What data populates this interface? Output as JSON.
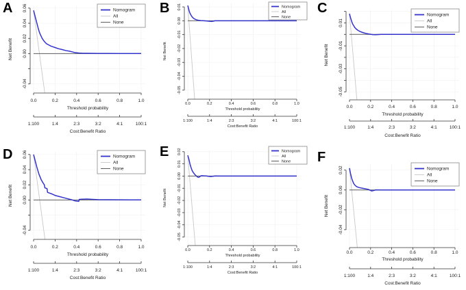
{
  "colors": {
    "nomogram": "#3333cc",
    "all": "#c8c8c8",
    "none": "#5c5c5c",
    "axis": "#333333",
    "grid": "#ededed",
    "legend_border": "#888888"
  },
  "legend": {
    "entries": [
      "Nomogram",
      "All",
      "None"
    ],
    "position": "topright"
  },
  "chart_data": {
    "type": "line",
    "shared": {
      "xlabel": "Threshold probability",
      "x2label": "Cost:Benefit Ratio",
      "ylabel": "Net Benefit",
      "xlim": [
        0,
        1
      ],
      "xticks": [
        0,
        0.2,
        0.4,
        0.6,
        0.8,
        1.0
      ],
      "xtick_labels": [
        "0.0",
        "0.2",
        "0.4",
        "0.6",
        "0.8",
        "1.0"
      ],
      "x2tick_labels": [
        "1:100",
        "1:4",
        "2:3",
        "3:2",
        "4:1",
        "100:1"
      ],
      "legend": [
        "Nomogram",
        "All",
        "None"
      ],
      "grid": true
    },
    "panels": [
      {
        "panel": "A",
        "ylim": [
          -0.052,
          0.0635
        ],
        "yticks": [
          {
            "v": 0.06,
            "label": "0.06"
          },
          {
            "v": 0.04,
            "label": "0.04"
          },
          {
            "v": 0.02,
            "label": "0.02"
          },
          {
            "v": 0,
            "label": "0.00"
          },
          {
            "v": -0.02,
            "label": ""
          },
          {
            "v": -0.04,
            "label": "-0.04"
          }
        ],
        "series": [
          {
            "name": "Nomogram",
            "x": [
              0,
              0.01,
              0.02,
              0.03,
              0.04,
              0.05,
              0.06,
              0.08,
              0.1,
              0.12,
              0.14,
              0.16,
              0.18,
              0.2,
              0.23,
              0.26,
              0.3,
              0.34,
              0.38,
              0.42,
              0.46,
              0.5,
              0.6,
              0.7,
              0.8,
              0.9,
              1.0
            ],
            "y": [
              0.057,
              0.0515,
              0.046,
              0.0405,
              0.035,
              0.03,
              0.026,
              0.02,
              0.016,
              0.013,
              0.0115,
              0.01,
              0.009,
              0.008,
              0.0065,
              0.0055,
              0.004,
              0.003,
              0.0015,
              0.0008,
              0.0005,
              0.0004,
              0.0002,
              0.0002,
              0.0001,
              0.0001,
              0.0001
            ]
          },
          {
            "name": "All",
            "x": [
              0,
              0.104
            ],
            "y": [
              0.057,
              -0.052
            ]
          },
          {
            "name": "None",
            "x": [
              0,
              1
            ],
            "y": [
              0,
              0
            ]
          }
        ]
      },
      {
        "panel": "B",
        "ylim": [
          -0.0565,
          0.0125
        ],
        "yticks": [
          {
            "v": 0.01,
            "label": "0.01"
          },
          {
            "v": 0,
            "label": "0.00"
          },
          {
            "v": -0.01,
            "label": "-0.01"
          },
          {
            "v": -0.02,
            "label": "-0.02"
          },
          {
            "v": -0.03,
            "label": "-0.03"
          },
          {
            "v": -0.04,
            "label": "-0.04"
          },
          {
            "v": -0.05,
            "label": "-0.05"
          }
        ],
        "series": [
          {
            "name": "Nomogram",
            "x": [
              0,
              0.005,
              0.01,
              0.015,
              0.02,
              0.03,
              0.04,
              0.05,
              0.06,
              0.08,
              0.1,
              0.12,
              0.15,
              0.18,
              0.2,
              0.22,
              0.24,
              0.25,
              0.3,
              0.4,
              0.5,
              0.6,
              0.8,
              1.0
            ],
            "y": [
              0.011,
              0.0095,
              0.008,
              0.0065,
              0.0055,
              0.004,
              0.0028,
              0.002,
              0.0014,
              0.0007,
              0.0003,
              0.0001,
              0,
              -0.0002,
              -0.0004,
              -0.0005,
              -0.0002,
              0,
              0,
              0,
              0,
              0,
              0,
              0
            ]
          },
          {
            "name": "All",
            "x": [
              0,
              0.063
            ],
            "y": [
              0.011,
              -0.0565
            ]
          },
          {
            "name": "None",
            "x": [
              0,
              1
            ],
            "y": [
              0,
              0
            ]
          }
        ]
      },
      {
        "panel": "C",
        "ylim": [
          -0.057,
          0.021
        ],
        "yticks": [
          {
            "v": 0.02,
            "label": ""
          },
          {
            "v": 0.01,
            "label": "0.01"
          },
          {
            "v": 0,
            "label": ""
          },
          {
            "v": -0.01,
            "label": "-0.01"
          },
          {
            "v": -0.02,
            "label": ""
          },
          {
            "v": -0.03,
            "label": "-0.03"
          },
          {
            "v": -0.04,
            "label": ""
          },
          {
            "v": -0.05,
            "label": "-0.05"
          }
        ],
        "series": [
          {
            "name": "Nomogram",
            "x": [
              0,
              0.005,
              0.01,
              0.02,
              0.03,
              0.04,
              0.05,
              0.06,
              0.08,
              0.1,
              0.12,
              0.14,
              0.16,
              0.18,
              0.2,
              0.22,
              0.25,
              0.3,
              0.4,
              0.6,
              0.8,
              1.0
            ],
            "y": [
              0.018,
              0.016,
              0.0145,
              0.0115,
              0.009,
              0.0075,
              0.006,
              0.005,
              0.0035,
              0.0025,
              0.0018,
              0.0012,
              0.0008,
              0.0004,
              0.0001,
              -0.0002,
              -0.0003,
              0,
              0,
              0,
              0,
              0
            ]
          },
          {
            "name": "All",
            "x": [
              0,
              0.07
            ],
            "y": [
              0.018,
              -0.057
            ]
          },
          {
            "name": "None",
            "x": [
              0,
              1
            ],
            "y": [
              0,
              0
            ]
          }
        ]
      },
      {
        "panel": "D",
        "ylim": [
          -0.052,
          0.0635
        ],
        "yticks": [
          {
            "v": 0.06,
            "label": "0.06"
          },
          {
            "v": 0.04,
            "label": "0.04"
          },
          {
            "v": 0.02,
            "label": "0.02"
          },
          {
            "v": 0,
            "label": "0.00"
          },
          {
            "v": -0.02,
            "label": ""
          },
          {
            "v": -0.04,
            "label": "-0.04"
          }
        ],
        "series": [
          {
            "name": "Nomogram",
            "x": [
              0,
              0.01,
              0.02,
              0.03,
              0.05,
              0.07,
              0.09,
              0.1,
              0.105,
              0.115,
              0.125,
              0.13,
              0.14,
              0.15,
              0.17,
              0.2,
              0.24,
              0.28,
              0.32,
              0.35,
              0.38,
              0.4,
              0.42,
              0.425,
              0.45,
              0.5,
              0.55,
              0.6,
              0.7,
              0.8,
              0.9,
              1.0
            ],
            "y": [
              0.06,
              0.0545,
              0.049,
              0.0435,
              0.034,
              0.027,
              0.022,
              0.02,
              0.016,
              0.0155,
              0.015,
              0.01,
              0.0095,
              0.009,
              0.008,
              0.006,
              0.0045,
              0.003,
              0.0015,
              0.0005,
              -0.001,
              -0.0015,
              -0.0018,
              0.0008,
              0.001,
              0.0012,
              0.0008,
              0.0005,
              0.0003,
              0.0002,
              0.0001,
              0.0001
            ]
          },
          {
            "name": "All",
            "x": [
              0,
              0.106
            ],
            "y": [
              0.06,
              -0.052
            ]
          },
          {
            "name": "None",
            "x": [
              0,
              1
            ],
            "y": [
              0,
              0
            ]
          }
        ]
      },
      {
        "panel": "E",
        "ylim": [
          -0.057,
          0.021
        ],
        "yticks": [
          {
            "v": 0.02,
            "label": "0.02"
          },
          {
            "v": 0.01,
            "label": "0.01"
          },
          {
            "v": 0,
            "label": "0.00"
          },
          {
            "v": -0.01,
            "label": "-0.01"
          },
          {
            "v": -0.02,
            "label": "-0.02"
          },
          {
            "v": -0.03,
            "label": "-0.03"
          },
          {
            "v": -0.04,
            "label": "-0.04"
          },
          {
            "v": -0.05,
            "label": "-0.05"
          }
        ],
        "series": [
          {
            "name": "Nomogram",
            "x": [
              0,
              0.005,
              0.01,
              0.02,
              0.03,
              0.04,
              0.05,
              0.06,
              0.07,
              0.08,
              0.09,
              0.1,
              0.11,
              0.12,
              0.13,
              0.15,
              0.17,
              0.19,
              0.21,
              0.23,
              0.25,
              0.3,
              0.4,
              0.6,
              0.8,
              1.0
            ],
            "y": [
              0.017,
              0.0155,
              0.014,
              0.01,
              0.007,
              0.0045,
              0.003,
              0.0018,
              0.0008,
              0,
              -0.0008,
              -0.001,
              -0.0006,
              0.0002,
              0.0003,
              0.0002,
              0.0001,
              -0.0002,
              -0.0004,
              -0.0002,
              0.0001,
              0,
              0,
              0,
              0,
              0
            ]
          },
          {
            "name": "All",
            "x": [
              0,
              0.069
            ],
            "y": [
              0.017,
              -0.057
            ]
          },
          {
            "name": "None",
            "x": [
              0,
              1
            ],
            "y": [
              0,
              0
            ]
          }
        ]
      },
      {
        "panel": "F",
        "ylim": [
          -0.058,
          0.026
        ],
        "yticks": [
          {
            "v": 0.02,
            "label": "0.02"
          },
          {
            "v": 0,
            "label": "0.00"
          },
          {
            "v": -0.02,
            "label": "-0.02"
          },
          {
            "v": -0.04,
            "label": "-0.04"
          }
        ],
        "series": [
          {
            "name": "Nomogram",
            "x": [
              0,
              0.005,
              0.01,
              0.02,
              0.03,
              0.04,
              0.05,
              0.06,
              0.07,
              0.08,
              0.1,
              0.12,
              0.14,
              0.16,
              0.18,
              0.2,
              0.21,
              0.22,
              0.24,
              0.25,
              0.3,
              0.4,
              0.6,
              0.8,
              1.0
            ],
            "y": [
              0.022,
              0.019,
              0.0165,
              0.012,
              0.009,
              0.0065,
              0.005,
              0.004,
              0.0033,
              0.0028,
              0.0022,
              0.0018,
              0.0014,
              0.001,
              0.0005,
              -0.0005,
              -0.001,
              -0.0008,
              -0.0002,
              0.0001,
              0,
              0,
              0,
              0,
              0
            ]
          },
          {
            "name": "All",
            "x": [
              0,
              0.074
            ],
            "y": [
              0.022,
              -0.058
            ]
          },
          {
            "name": "None",
            "x": [
              0,
              1
            ],
            "y": [
              0,
              0
            ]
          }
        ]
      }
    ]
  }
}
